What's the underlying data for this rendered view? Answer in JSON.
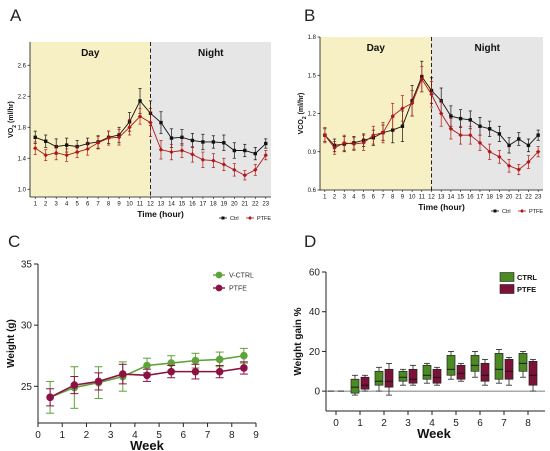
{
  "colors": {
    "ctrl_black": "#111111",
    "ptfe_red": "#b01818",
    "day_fill": "#f7f0c4",
    "night_fill": "#e6e6e6",
    "vctrl_green": "#5fa23a",
    "ptfe_purple": "#8c1244",
    "box_green": "#4b8b22",
    "box_purple": "#7d1238"
  },
  "panels": {
    "A": {
      "letter": "A",
      "day_label": "Day",
      "night_label": "Night",
      "xlabel": "Time (hour)",
      "ylabel_main": "VO",
      "ylabel_sub": "2",
      "ylabel_unit": " (ml/hr)"
    },
    "B": {
      "letter": "B",
      "day_label": "Day",
      "night_label": "Night",
      "xlabel": "Time (hour)",
      "ylabel_main": "VCO",
      "ylabel_sub": "2",
      "ylabel_unit": " (ml/hr)"
    },
    "C": {
      "letter": "C",
      "xlabel": "Week",
      "ylabel": "Weight (g)"
    },
    "D": {
      "letter": "D",
      "xlabel": "Week",
      "ylabel": "Weight gain %"
    }
  },
  "chart_data": [
    {
      "panel": "A",
      "type": "line",
      "xlabel": "Time (hour)",
      "ylabel": "VO2 (ml/hr)",
      "x": [
        1,
        2,
        3,
        4,
        5,
        6,
        7,
        8,
        9,
        10,
        11,
        12,
        13,
        14,
        15,
        16,
        17,
        18,
        19,
        20,
        21,
        22,
        23
      ],
      "xlim": [
        0.5,
        23.5
      ],
      "ylim": [
        0.9,
        2.9
      ],
      "yticks": [
        1.0,
        1.4,
        1.8,
        2.2,
        2.6
      ],
      "ytick_labels": [
        "1.0",
        "1.4",
        "1.8",
        "2.2",
        "2.6"
      ],
      "shading": {
        "day": [
          0.5,
          12
        ],
        "night": [
          12,
          23.5
        ]
      },
      "legend": "bottom-right",
      "series": [
        {
          "name": "Ctrl",
          "color": "#111111",
          "values": [
            1.67,
            1.62,
            1.55,
            1.57,
            1.55,
            1.59,
            1.61,
            1.67,
            1.7,
            1.87,
            2.14,
            1.98,
            1.86,
            1.66,
            1.67,
            1.63,
            1.61,
            1.61,
            1.6,
            1.5,
            1.5,
            1.46,
            1.59
          ],
          "err": [
            0.08,
            0.08,
            0.1,
            0.09,
            0.08,
            0.07,
            0.08,
            0.08,
            0.1,
            0.12,
            0.16,
            0.16,
            0.14,
            0.12,
            0.1,
            0.09,
            0.1,
            0.08,
            0.1,
            0.1,
            0.08,
            0.08,
            0.06
          ]
        },
        {
          "name": "PTFE",
          "color": "#b01818",
          "values": [
            1.53,
            1.44,
            1.47,
            1.44,
            1.48,
            1.52,
            1.6,
            1.66,
            1.67,
            1.8,
            1.94,
            1.86,
            1.51,
            1.48,
            1.5,
            1.45,
            1.38,
            1.37,
            1.32,
            1.25,
            1.18,
            1.25,
            1.44
          ],
          "err": [
            0.08,
            0.07,
            0.09,
            0.08,
            0.07,
            0.08,
            0.08,
            0.09,
            0.1,
            0.1,
            0.1,
            0.18,
            0.12,
            0.1,
            0.09,
            0.1,
            0.1,
            0.09,
            0.08,
            0.08,
            0.06,
            0.07,
            0.06
          ]
        }
      ]
    },
    {
      "panel": "B",
      "type": "line",
      "xlabel": "Time (hour)",
      "ylabel": "VCO2 (ml/hr)",
      "x": [
        1,
        2,
        3,
        4,
        5,
        6,
        7,
        8,
        9,
        10,
        11,
        12,
        13,
        14,
        15,
        16,
        17,
        18,
        19,
        20,
        21,
        22,
        23
      ],
      "xlim": [
        0.5,
        23.5
      ],
      "ylim": [
        0.6,
        1.8
      ],
      "yticks": [
        0.6,
        0.9,
        1.2,
        1.5,
        1.8
      ],
      "ytick_labels": [
        "0.6",
        "0.9",
        "1.2",
        "1.5",
        "1.8"
      ],
      "shading": {
        "day": [
          0.5,
          12
        ],
        "night": [
          12,
          23.5
        ]
      },
      "legend": "bottom-right",
      "series": [
        {
          "name": "Ctrl",
          "color": "#111111",
          "values": [
            1.03,
            0.95,
            0.96,
            0.97,
            0.99,
            1.01,
            1.05,
            1.07,
            1.1,
            1.3,
            1.49,
            1.38,
            1.3,
            1.18,
            1.16,
            1.15,
            1.1,
            1.08,
            1.04,
            0.95,
            1.0,
            0.95,
            1.03
          ],
          "err": [
            0.05,
            0.05,
            0.06,
            0.05,
            0.05,
            0.06,
            0.06,
            0.1,
            0.12,
            0.12,
            0.12,
            0.1,
            0.1,
            0.08,
            0.07,
            0.07,
            0.07,
            0.06,
            0.06,
            0.06,
            0.05,
            0.05,
            0.04
          ]
        },
        {
          "name": "PTFE",
          "color": "#b01818",
          "values": [
            1.03,
            0.93,
            0.97,
            0.96,
            0.97,
            1.03,
            1.05,
            1.18,
            1.24,
            1.28,
            1.47,
            1.35,
            1.2,
            1.08,
            1.03,
            1.03,
            0.97,
            0.9,
            0.86,
            0.79,
            0.76,
            0.82,
            0.9
          ],
          "err": [
            0.06,
            0.05,
            0.06,
            0.05,
            0.06,
            0.07,
            0.08,
            0.1,
            0.1,
            0.1,
            0.1,
            0.1,
            0.1,
            0.08,
            0.07,
            0.07,
            0.06,
            0.06,
            0.05,
            0.05,
            0.04,
            0.05,
            0.04
          ]
        }
      ]
    },
    {
      "panel": "C",
      "type": "line",
      "xlabel": "Week",
      "ylabel": "Weight (g)",
      "xlim": [
        0,
        9
      ],
      "ylim": [
        22,
        35
      ],
      "xticks": [
        0,
        1,
        2,
        3,
        4,
        5,
        6,
        7,
        8,
        9
      ],
      "yticks": [
        25,
        30,
        35
      ],
      "legend": "top-right",
      "series": [
        {
          "name": "V-CTRL",
          "color": "#5fa23a",
          "x": [
            0.5,
            1.5,
            2.5,
            3.5,
            4.5,
            5.5,
            6.5,
            7.5,
            8.5
          ],
          "values": [
            24.1,
            24.9,
            25.3,
            25.8,
            26.7,
            26.9,
            27.1,
            27.2,
            27.5
          ],
          "err": [
            1.3,
            1.7,
            1.3,
            1.2,
            0.6,
            0.6,
            0.6,
            0.6,
            0.6
          ]
        },
        {
          "name": "PTFE",
          "color": "#8c1244",
          "x": [
            0.5,
            1.5,
            2.5,
            3.5,
            4.5,
            5.5,
            6.5,
            7.5,
            8.5
          ],
          "values": [
            24.1,
            25.1,
            25.4,
            26.0,
            25.9,
            26.2,
            26.2,
            26.2,
            26.5
          ],
          "err": [
            0.7,
            0.7,
            0.7,
            0.8,
            0.5,
            0.5,
            0.6,
            0.5,
            0.5
          ]
        }
      ]
    },
    {
      "panel": "D",
      "type": "box",
      "xlabel": "Week",
      "ylabel": "Weight gain %",
      "categories": [
        "0",
        "1",
        "2",
        "3",
        "4",
        "5",
        "6",
        "7",
        "8"
      ],
      "ylim": [
        -10,
        60
      ],
      "yticks": [
        0,
        20,
        40,
        60
      ],
      "legend": "top-right",
      "series": [
        {
          "name": "CTRL",
          "color": "#4b8b22",
          "boxes": [
            {
              "week": 0,
              "min": 0,
              "q1": 0,
              "median": 0,
              "q3": 0,
              "max": 0
            },
            {
              "week": 1,
              "min": -2,
              "q1": -1,
              "median": 2,
              "q3": 6,
              "max": 8
            },
            {
              "week": 2,
              "min": 0,
              "q1": 3,
              "median": 5,
              "q3": 10,
              "max": 12
            },
            {
              "week": 3,
              "min": 3,
              "q1": 5,
              "median": 7,
              "q3": 10,
              "max": 11
            },
            {
              "week": 4,
              "min": 4,
              "q1": 6,
              "median": 8,
              "q3": 13,
              "max": 14
            },
            {
              "week": 5,
              "min": 6,
              "q1": 8,
              "median": 11,
              "q3": 18,
              "max": 20
            },
            {
              "week": 6,
              "min": 7,
              "q1": 10,
              "median": 13,
              "q3": 18,
              "max": 20
            },
            {
              "week": 7,
              "min": 4,
              "q1": 6,
              "median": 11,
              "q3": 19,
              "max": 21
            },
            {
              "week": 8,
              "min": 7,
              "q1": 10,
              "median": 14,
              "q3": 19,
              "max": 20
            }
          ]
        },
        {
          "name": "PTFE",
          "color": "#7d1238",
          "boxes": [
            {
              "week": 0,
              "min": 0,
              "q1": 0,
              "median": 0,
              "q3": 0,
              "max": 0
            },
            {
              "week": 1,
              "min": 0,
              "q1": 1,
              "median": 3,
              "q3": 7,
              "max": 8
            },
            {
              "week": 2,
              "min": -2,
              "q1": 2,
              "median": 5,
              "q3": 11,
              "max": 14
            },
            {
              "week": 3,
              "min": 3,
              "q1": 4,
              "median": 6,
              "q3": 11,
              "max": 13
            },
            {
              "week": 4,
              "min": 3,
              "q1": 4,
              "median": 7,
              "q3": 11,
              "max": 12
            },
            {
              "week": 5,
              "min": 5,
              "q1": 6,
              "median": 9,
              "q3": 13,
              "max": 14
            },
            {
              "week": 6,
              "min": 3,
              "q1": 5,
              "median": 8,
              "q3": 14,
              "max": 16
            },
            {
              "week": 7,
              "min": 3,
              "q1": 6,
              "median": 10,
              "q3": 16,
              "max": 17
            },
            {
              "week": 8,
              "min": 0,
              "q1": 3,
              "median": 8,
              "q3": 15,
              "max": 16
            }
          ]
        }
      ]
    }
  ]
}
